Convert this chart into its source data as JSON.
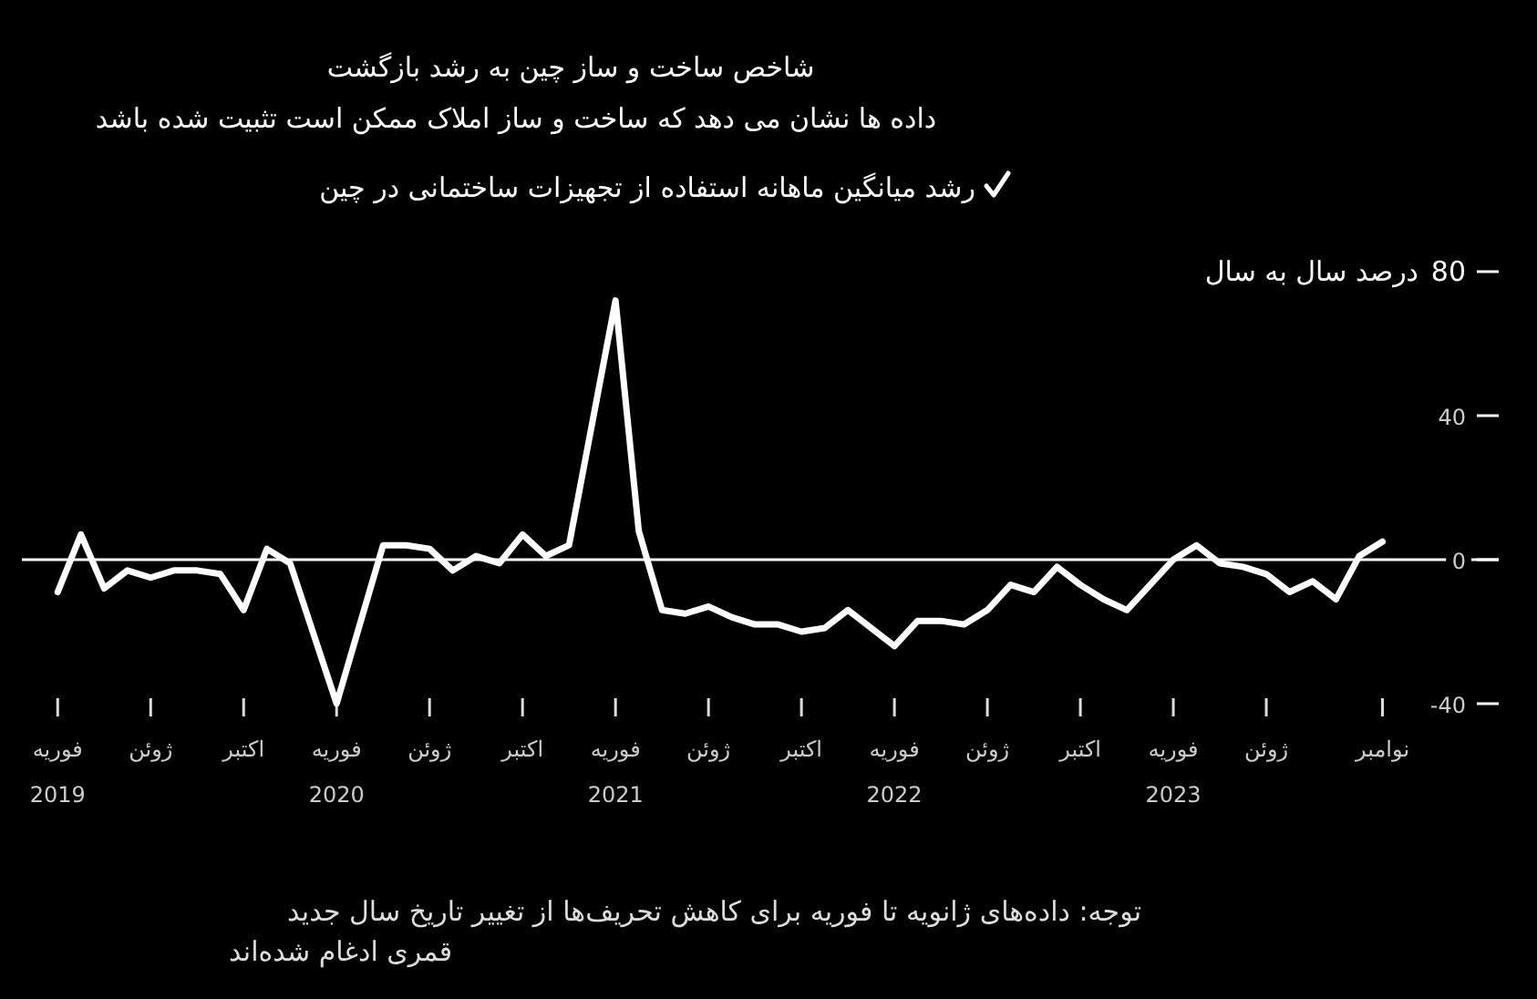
{
  "chart_data": {
    "type": "line",
    "title": "شاخص ساخت و ساز چین به رشد بازگشت",
    "subtitle": "داده ها نشان می دهد که ساخت و ساز املاک ممکن است تثبیت شده باشد",
    "ylabel": "درصد سال به سال",
    "annotations": [
      "توجه: داده‌های ژانویه تا فوریه برای کاهش تحریف‌ها از تغییر تاریخ سال جدید قمری ادغام شده‌اند"
    ],
    "x": [
      "2019-02",
      "2019-03",
      "2019-04",
      "2019-05",
      "2019-06",
      "2019-07",
      "2019-08",
      "2019-09",
      "2019-10",
      "2019-11",
      "2019-12",
      "2020-02",
      "2020-03",
      "2020-04",
      "2020-05",
      "2020-06",
      "2020-07",
      "2020-08",
      "2020-09",
      "2020-10",
      "2020-11",
      "2020-12",
      "2021-02",
      "2021-03",
      "2021-04",
      "2021-05",
      "2021-06",
      "2021-07",
      "2021-08",
      "2021-09",
      "2021-10",
      "2021-11",
      "2021-12",
      "2022-02",
      "2022-03",
      "2022-04",
      "2022-05",
      "2022-06",
      "2022-07",
      "2022-08",
      "2022-09",
      "2022-10",
      "2022-11",
      "2022-12",
      "2023-02",
      "2023-03",
      "2023-04",
      "2023-05",
      "2023-06",
      "2023-07",
      "2023-08",
      "2023-09",
      "2023-10",
      "2023-11"
    ],
    "series": [
      {
        "name": "رشد میانگین ماهانه استفاده از تجهیزات ساختمانی در چین",
        "color": "#ffffff",
        "values": [
          -9,
          7,
          -8,
          -3,
          -5,
          -3,
          -3,
          -4,
          -14,
          3,
          -1,
          -40,
          -18,
          4,
          4,
          3,
          -3,
          1,
          -1,
          7,
          1,
          4,
          72,
          8,
          -14,
          -15,
          -13,
          -16,
          -18,
          -18,
          -20,
          -19,
          -14,
          -24,
          -17,
          -17,
          -18,
          -14,
          -7,
          -9,
          -2,
          -7,
          -11,
          -14,
          0,
          4,
          -1,
          -2,
          -4,
          -9,
          -6,
          -11,
          1,
          5
        ]
      }
    ],
    "xlim": [
      "2018-12-15",
      "2024-04-01"
    ],
    "xticks": [
      {
        "value": "2019-02",
        "label": "فوریه\n2019"
      },
      {
        "value": "2019-06",
        "label": "ژوئن"
      },
      {
        "value": "2019-10",
        "label": "اکتبر"
      },
      {
        "value": "2020-02",
        "label": "فوریه\n2020"
      },
      {
        "value": "2020-06",
        "label": "ژوئن"
      },
      {
        "value": "2020-10",
        "label": "اکتبر"
      },
      {
        "value": "2021-02",
        "label": "فوریه\n2021"
      },
      {
        "value": "2021-06",
        "label": "ژوئن"
      },
      {
        "value": "2021-10",
        "label": "اکتبر"
      },
      {
        "value": "2022-02",
        "label": "فوریه\n2022"
      },
      {
        "value": "2022-06",
        "label": "ژوئن"
      },
      {
        "value": "2022-10",
        "label": "اکتبر"
      },
      {
        "value": "2023-02",
        "label": "فوریه\n2023"
      },
      {
        "value": "2023-06",
        "label": "ژوئن"
      },
      {
        "value": "2023-11",
        "label": "نوامبر"
      }
    ],
    "ylim": [
      -40,
      80
    ],
    "yticks": [
      80,
      40,
      0,
      -40
    ],
    "ref_lines": [
      {
        "axis": "y",
        "value": 0,
        "color": "#ffffff"
      }
    ],
    "grid": false,
    "legend": "top",
    "marker": "none",
    "line_style": "solid"
  }
}
